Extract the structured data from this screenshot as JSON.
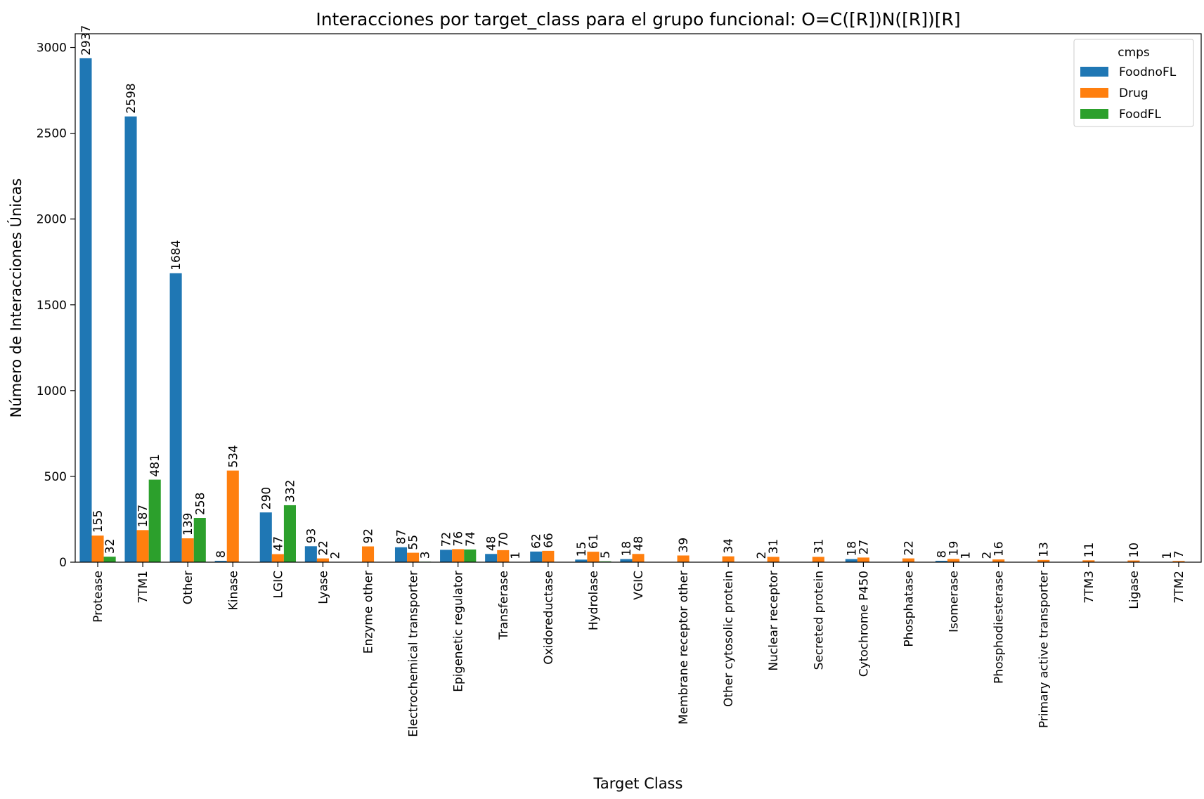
{
  "chart_data": {
    "type": "bar",
    "title": "Interacciones por target_class para el grupo funcional: O=C([R])N([R])[R]",
    "xlabel": "Target Class",
    "ylabel": "Número de Interacciones Únicas",
    "ylim": [
      0,
      3080
    ],
    "yticks": [
      0,
      500,
      1000,
      1500,
      2000,
      2500,
      3000
    ],
    "grid": false,
    "legend": {
      "title": "cmps",
      "position": "top-right"
    },
    "categories": [
      "Protease",
      "7TM1",
      "Other",
      "Kinase",
      "LGIC",
      "Lyase",
      "Enzyme other",
      "Electrochemical transporter",
      "Epigenetic regulator",
      "Transferase",
      "Oxidoreductase",
      "Hydrolase",
      "VGIC",
      "Membrane receptor other",
      "Other cytosolic protein",
      "Nuclear receptor",
      "Secreted protein",
      "Cytochrome P450",
      "Phosphatase",
      "Isomerase",
      "Phosphodiesterase",
      "Primary active transporter",
      "7TM3",
      "Ligase",
      "7TM2"
    ],
    "series": [
      {
        "name": "FoodnoFL",
        "color": "#1f77b4",
        "values": [
          2937,
          2598,
          1684,
          8,
          290,
          93,
          null,
          87,
          72,
          48,
          62,
          15,
          18,
          null,
          null,
          2,
          null,
          18,
          null,
          8,
          2,
          null,
          null,
          null,
          1
        ]
      },
      {
        "name": "Drug",
        "color": "#ff7f0e",
        "values": [
          155,
          187,
          139,
          534,
          47,
          22,
          92,
          55,
          76,
          70,
          66,
          61,
          48,
          39,
          34,
          31,
          31,
          27,
          22,
          19,
          16,
          13,
          11,
          10,
          7
        ]
      },
      {
        "name": "FoodFL",
        "color": "#2ca02c",
        "values": [
          32,
          481,
          258,
          null,
          332,
          2,
          null,
          3,
          74,
          1,
          null,
          5,
          null,
          null,
          null,
          null,
          null,
          null,
          null,
          1,
          null,
          null,
          null,
          null,
          null
        ]
      }
    ]
  }
}
